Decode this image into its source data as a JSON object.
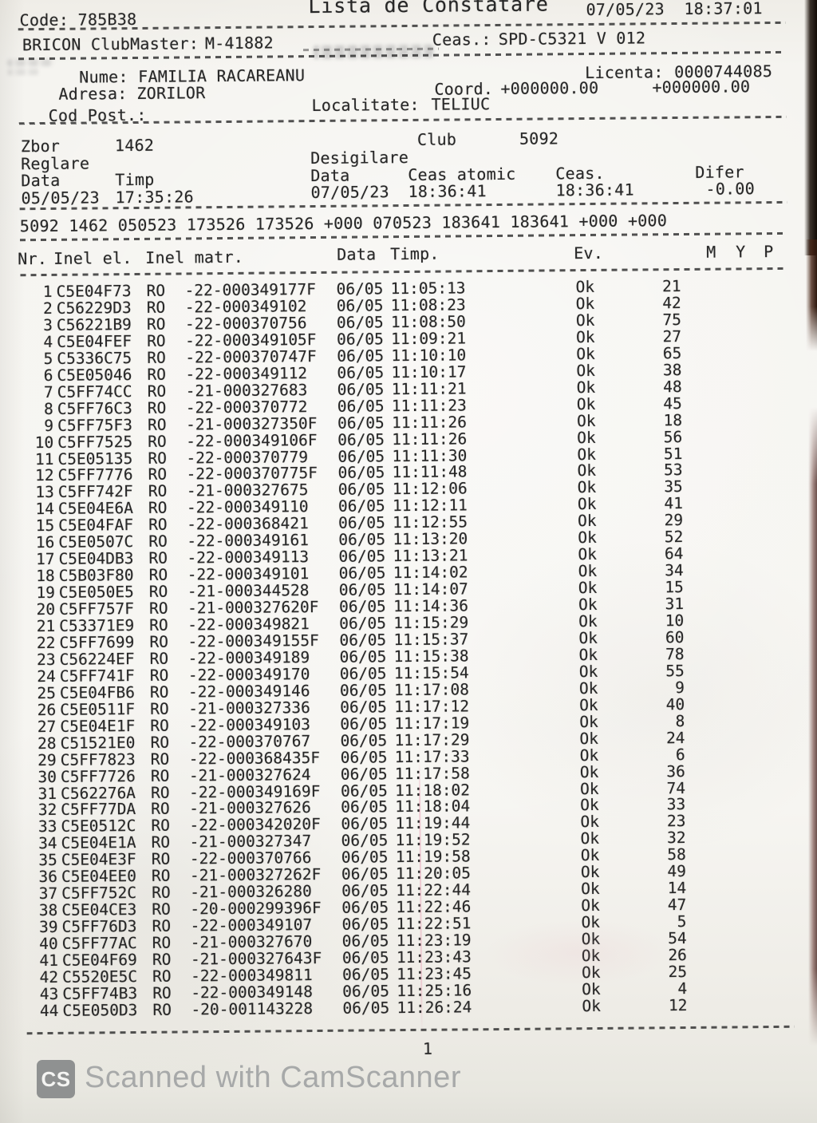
{
  "meta": {
    "code_label": "Code:",
    "code_value": "785B38",
    "title": "Lista de Constatare",
    "printed_at": "07/05/23  18:37:01"
  },
  "device": {
    "label": "BRICON ClubMaster:",
    "value": "M-41882",
    "clock_label": "Ceas.:",
    "clock_value": "SPD-C5321 V 012"
  },
  "owner": {
    "nume_label": "Nume:",
    "nume": "FAMILIA RACAREANU",
    "licenta_label": "Licenta:",
    "licenta": "0000744085",
    "adresa_label": "Adresa:",
    "adresa": "ZORILOR",
    "coord_label": "Coord.",
    "coord1": "+000000.00",
    "coord2": "+000000.00",
    "localitate_label": "Localitate:",
    "localitate": "TELIUC",
    "codpost_label": "Cod Post.:"
  },
  "flight": {
    "zbor_label": "Zbor",
    "zbor": "1462",
    "club_label": "Club",
    "club": "5092",
    "reglare_label": "Reglare",
    "desigilare_label": "Desigilare",
    "reglare_data_label": "Data",
    "reglare_timp_label": "Timp",
    "des_data_label": "Data",
    "ceas_atomic_label": "Ceas atomic",
    "ceas_label": "Ceas.",
    "difer_label": "Difer",
    "reglare_data": "05/05/23",
    "reglare_timp": "17:35:26",
    "des_data": "07/05/23",
    "ceas_atomic": "18:36:41",
    "ceas": "18:36:41",
    "difer": "-0.00",
    "summary_line": "5092 1462 050523 173526 173526 +000 070523 183641 183641 +000 +000"
  },
  "table": {
    "headers": {
      "nr": "Nr.",
      "inel_el": "Inel el.",
      "inel_matr": "Inel matr.",
      "data": "Data",
      "timp": "Timp.",
      "ev": "Ev.",
      "m": "M",
      "y": "Y",
      "p": "P"
    },
    "rows": [
      [
        "1",
        "C5E04F73",
        "RO",
        "-22-000349177F",
        "06/05",
        "11:05:13",
        "Ok",
        "21"
      ],
      [
        "2",
        "C56229D3",
        "RO",
        "-22-000349102",
        "06/05",
        "11:08:23",
        "Ok",
        "42"
      ],
      [
        "3",
        "C56221B9",
        "RO",
        "-22-000370756",
        "06/05",
        "11:08:50",
        "Ok",
        "75"
      ],
      [
        "4",
        "C5E04FEF",
        "RO",
        "-22-000349105F",
        "06/05",
        "11:09:21",
        "Ok",
        "27"
      ],
      [
        "5",
        "C5336C75",
        "RO",
        "-22-000370747F",
        "06/05",
        "11:10:10",
        "Ok",
        "65"
      ],
      [
        "6",
        "C5E05046",
        "RO",
        "-22-000349112",
        "06/05",
        "11:10:17",
        "Ok",
        "38"
      ],
      [
        "7",
        "C5FF74CC",
        "RO",
        "-21-000327683",
        "06/05",
        "11:11:21",
        "Ok",
        "48"
      ],
      [
        "8",
        "C5FF76C3",
        "RO",
        "-22-000370772",
        "06/05",
        "11:11:23",
        "Ok",
        "45"
      ],
      [
        "9",
        "C5FF75F3",
        "RO",
        "-21-000327350F",
        "06/05",
        "11:11:26",
        "Ok",
        "18"
      ],
      [
        "10",
        "C5FF7525",
        "RO",
        "-22-000349106F",
        "06/05",
        "11:11:26",
        "Ok",
        "56"
      ],
      [
        "11",
        "C5E05135",
        "RO",
        "-22-000370779",
        "06/05",
        "11:11:30",
        "Ok",
        "51"
      ],
      [
        "12",
        "C5FF7776",
        "RO",
        "-22-000370775F",
        "06/05",
        "11:11:48",
        "Ok",
        "53"
      ],
      [
        "13",
        "C5FF742F",
        "RO",
        "-21-000327675",
        "06/05",
        "11:12:06",
        "Ok",
        "35"
      ],
      [
        "14",
        "C5E04E6A",
        "RO",
        "-22-000349110",
        "06/05",
        "11:12:11",
        "Ok",
        "41"
      ],
      [
        "15",
        "C5E04FAF",
        "RO",
        "-22-000368421",
        "06/05",
        "11:12:55",
        "Ok",
        "29"
      ],
      [
        "16",
        "C5E0507C",
        "RO",
        "-22-000349161",
        "06/05",
        "11:13:20",
        "Ok",
        "52"
      ],
      [
        "17",
        "C5E04DB3",
        "RO",
        "-22-000349113",
        "06/05",
        "11:13:21",
        "Ok",
        "64"
      ],
      [
        "18",
        "C5B03F80",
        "RO",
        "-22-000349101",
        "06/05",
        "11:14:02",
        "Ok",
        "34"
      ],
      [
        "19",
        "C5E050E5",
        "RO",
        "-21-000344528",
        "06/05",
        "11:14:07",
        "Ok",
        "15"
      ],
      [
        "20",
        "C5FF757F",
        "RO",
        "-21-000327620F",
        "06/05",
        "11:14:36",
        "Ok",
        "31"
      ],
      [
        "21",
        "C53371E9",
        "RO",
        "-22-000349821",
        "06/05",
        "11:15:29",
        "Ok",
        "10"
      ],
      [
        "22",
        "C5FF7699",
        "RO",
        "-22-000349155F",
        "06/05",
        "11:15:37",
        "Ok",
        "60"
      ],
      [
        "23",
        "C56224EF",
        "RO",
        "-22-000349189",
        "06/05",
        "11:15:38",
        "Ok",
        "78"
      ],
      [
        "24",
        "C5FF741F",
        "RO",
        "-22-000349170",
        "06/05",
        "11:15:54",
        "Ok",
        "55"
      ],
      [
        "25",
        "C5E04FB6",
        "RO",
        "-22-000349146",
        "06/05",
        "11:17:08",
        "Ok",
        "9"
      ],
      [
        "26",
        "C5E0511F",
        "RO",
        "-21-000327336",
        "06/05",
        "11:17:12",
        "Ok",
        "40"
      ],
      [
        "27",
        "C5E04E1F",
        "RO",
        "-22-000349103",
        "06/05",
        "11:17:19",
        "Ok",
        "8"
      ],
      [
        "28",
        "C51521E0",
        "RO",
        "-22-000370767",
        "06/05",
        "11:17:29",
        "Ok",
        "24"
      ],
      [
        "29",
        "C5FF7823",
        "RO",
        "-22-000368435F",
        "06/05",
        "11:17:33",
        "Ok",
        "6"
      ],
      [
        "30",
        "C5FF7726",
        "RO",
        "-21-000327624",
        "06/05",
        "11:17:58",
        "Ok",
        "36"
      ],
      [
        "31",
        "C562276A",
        "RO",
        "-22-000349169F",
        "06/05",
        "11:18:02",
        "Ok",
        "74"
      ],
      [
        "32",
        "C5FF77DA",
        "RO",
        "-21-000327626",
        "06/05",
        "11:18:04",
        "Ok",
        "33"
      ],
      [
        "33",
        "C5E0512C",
        "RO",
        "-22-000342020F",
        "06/05",
        "11:19:44",
        "Ok",
        "23"
      ],
      [
        "34",
        "C5E04E1A",
        "RO",
        "-21-000327347",
        "06/05",
        "11:19:52",
        "Ok",
        "32"
      ],
      [
        "35",
        "C5E04E3F",
        "RO",
        "-22-000370766",
        "06/05",
        "11:19:58",
        "Ok",
        "58"
      ],
      [
        "36",
        "C5E04EE0",
        "RO",
        "-21-000327262F",
        "06/05",
        "11:20:05",
        "Ok",
        "49"
      ],
      [
        "37",
        "C5FF752C",
        "RO",
        "-21-000326280",
        "06/05",
        "11:22:44",
        "Ok",
        "14"
      ],
      [
        "38",
        "C5E04CE3",
        "RO",
        "-20-000299396F",
        "06/05",
        "11:22:46",
        "Ok",
        "47"
      ],
      [
        "39",
        "C5FF76D3",
        "RO",
        "-22-000349107",
        "06/05",
        "11:22:51",
        "Ok",
        "5"
      ],
      [
        "40",
        "C5FF77AC",
        "RO",
        "-21-000327670",
        "06/05",
        "11:23:19",
        "Ok",
        "54"
      ],
      [
        "41",
        "C5E04F69",
        "RO",
        "-21-000327643F",
        "06/05",
        "11:23:43",
        "Ok",
        "26"
      ],
      [
        "42",
        "C5520E5C",
        "RO",
        "-22-000349811",
        "06/05",
        "11:23:45",
        "Ok",
        "25"
      ],
      [
        "43",
        "C5FF74B3",
        "RO",
        "-22-000349148",
        "06/05",
        "11:25:16",
        "Ok",
        "4"
      ],
      [
        "44",
        "C5E050D3",
        "RO",
        "-20-001143228",
        "06/05",
        "11:26:24",
        "Ok",
        "12"
      ]
    ]
  },
  "footer": {
    "page": "1"
  },
  "watermark": {
    "logo": "CS",
    "text": "Scanned with CamScanner"
  }
}
